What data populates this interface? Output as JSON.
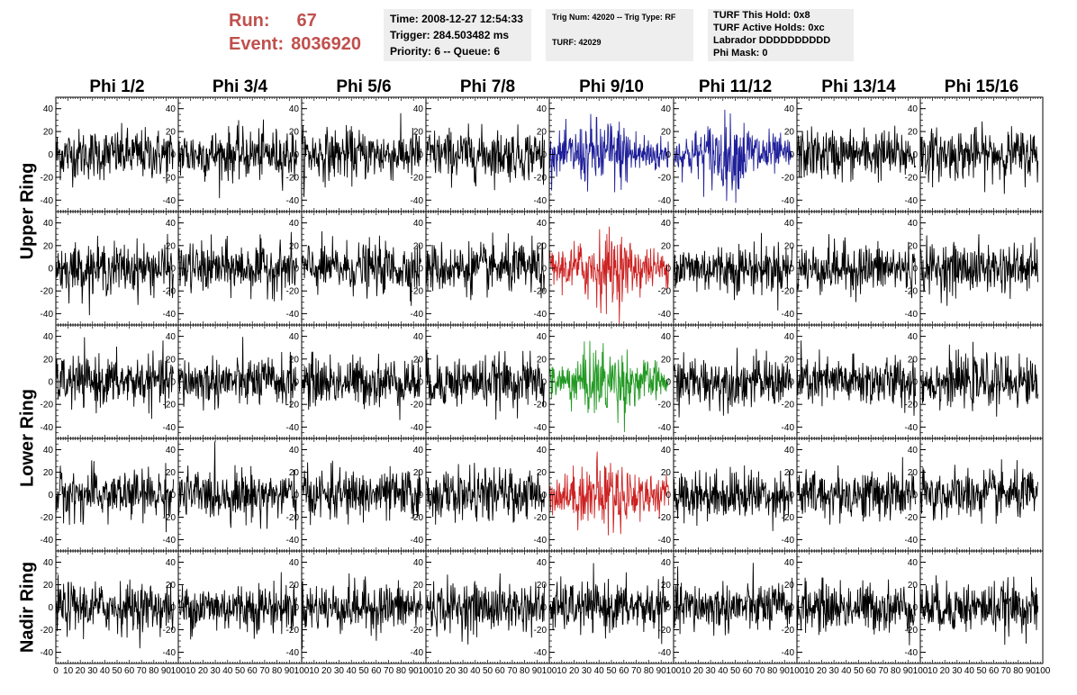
{
  "header": {
    "run_label": "Run:",
    "run_value": "67",
    "event_label": "Event:",
    "event_value": "8036920",
    "time_line": "Time: 2008-12-27 12:54:33",
    "trigger_line": "Trigger: 284.503482 ms",
    "priority_line": "Priority: 6 -- Queue: 6",
    "trig_line": "Trig Num: 42020 -- Trig Type: RF",
    "turf_line": "TURF: 42029",
    "turf_hold_line": "TURF This Hold: 0x8",
    "turf_active_line": "TURF Active Holds: 0xc",
    "labrador_line": "Labrador DDDDDDDDDD",
    "phi_mask_line": "Phi Mask: 0"
  },
  "colors": {
    "header_text": "#c0504d",
    "box_bg": "#eeeeee",
    "trace_default": "#000000",
    "trace_blue": "#1f1f9a",
    "trace_red": "#cc2222",
    "trace_green": "#229922"
  },
  "chart_data": {
    "type": "line",
    "columns": [
      "Phi 1/2",
      "Phi 3/4",
      "Phi 5/6",
      "Phi 7/8",
      "Phi 9/10",
      "Phi 11/12",
      "Phi 13/14",
      "Phi 15/16"
    ],
    "rings": [
      "Upper Ring",
      "Lower Ring",
      "Nadir Ring"
    ],
    "rows_per_ring": [
      2,
      2,
      1
    ],
    "xlim": [
      0,
      100
    ],
    "ylim": [
      -50,
      50
    ],
    "x_ticks": [
      0,
      10,
      20,
      30,
      40,
      50,
      60,
      70,
      80,
      90,
      100
    ],
    "y_ticks": [
      -40,
      -20,
      0,
      20,
      40
    ],
    "y_tick_side_odd_rows": "right",
    "trace_x_range": [
      0,
      96
    ],
    "noise_amplitude": 20,
    "highlighted": [
      {
        "row": 0,
        "col": 4,
        "color": "trace_blue"
      },
      {
        "row": 0,
        "col": 5,
        "color": "trace_blue"
      },
      {
        "row": 1,
        "col": 4,
        "color": "trace_red"
      },
      {
        "row": 2,
        "col": 4,
        "color": "trace_green"
      },
      {
        "row": 3,
        "col": 4,
        "color": "trace_red"
      }
    ]
  }
}
